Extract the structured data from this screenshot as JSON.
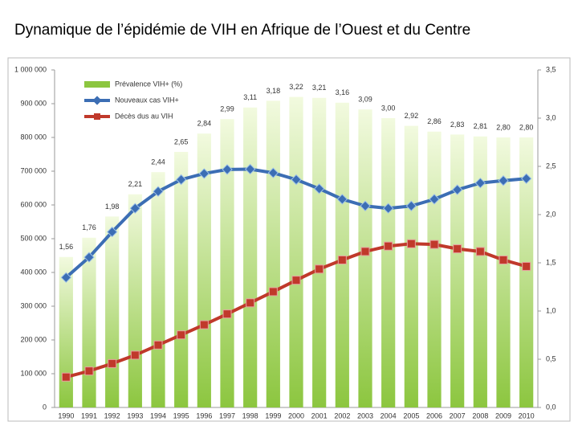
{
  "chart_data": {
    "type": "combo",
    "title": "Dynamique de l’épidémie de VIH en Afrique de l’Ouest et du Centre",
    "categories": [
      "1990",
      "1991",
      "1992",
      "1993",
      "1994",
      "1995",
      "1996",
      "1997",
      "1998",
      "1999",
      "2000",
      "2001",
      "2002",
      "2003",
      "2004",
      "2005",
      "2006",
      "2007",
      "2008",
      "2009",
      "2010"
    ],
    "series": [
      {
        "name": "Prévalence VIH+ (%)",
        "type": "bar",
        "axis": "y2",
        "color": "#8cc63f",
        "values": [
          1.56,
          1.76,
          1.98,
          2.21,
          2.44,
          2.65,
          2.84,
          2.99,
          3.11,
          3.18,
          3.22,
          3.21,
          3.16,
          3.09,
          3.0,
          2.92,
          2.86,
          2.83,
          2.81,
          2.8,
          2.8
        ],
        "value_labels": [
          "1,56",
          "1,76",
          "1,98",
          "2,21",
          "2,44",
          "2,65",
          "2,84",
          "2,99",
          "3,11",
          "3,18",
          "3,22",
          "3,21",
          "3,16",
          "3,09",
          "3,00",
          "2,92",
          "2,86",
          "2,83",
          "2,81",
          "2,80",
          "2,80"
        ]
      },
      {
        "name": "Nouveaux cas VIH+",
        "type": "line",
        "marker": "diamond",
        "color": "#3c6eb4",
        "values": [
          385000,
          445000,
          520000,
          590000,
          640000,
          675000,
          693000,
          705000,
          706000,
          695000,
          675000,
          648000,
          617000,
          597000,
          590000,
          597000,
          617000,
          645000,
          665000,
          672000,
          678000
        ]
      },
      {
        "name": "Décès dus au VIH",
        "type": "line",
        "marker": "square",
        "color": "#c0392b",
        "values": [
          90000,
          108000,
          130000,
          155000,
          185000,
          215000,
          245000,
          277000,
          310000,
          343000,
          377000,
          410000,
          437000,
          462000,
          478000,
          485000,
          483000,
          470000,
          462000,
          437000,
          418000
        ]
      }
    ],
    "ylim": [
      0,
      1000000
    ],
    "yticks": [
      0,
      {
        "value": 100000,
        "label": "100 000"
      },
      {
        "value": 200000,
        "label": "200 000"
      },
      {
        "value": 300000,
        "label": "300 000"
      },
      {
        "value": 400000,
        "label": "400 000"
      },
      {
        "value": 500000,
        "label": "500 000"
      },
      {
        "value": 600000,
        "label": "600 000"
      },
      {
        "value": 700000,
        "label": "700 000"
      },
      {
        "value": 800000,
        "label": "800 000"
      },
      {
        "value": 900000,
        "label": "900 000"
      },
      {
        "value": 1000000,
        "label": "1 000 000"
      }
    ],
    "y2lim": [
      0,
      3.5
    ],
    "y2ticks": [
      {
        "value": 0,
        "label": "0,0"
      },
      {
        "value": 0.5,
        "label": "0,5"
      },
      {
        "value": 1,
        "label": "1,0"
      },
      {
        "value": 1.5,
        "label": "1,5"
      },
      {
        "value": 2,
        "label": "2,0"
      },
      {
        "value": 2.5,
        "label": "2,5"
      },
      {
        "value": 3,
        "label": "3,0"
      },
      {
        "value": 3.5,
        "label": "3,5"
      }
    ],
    "grid": false,
    "legend": "top-left"
  }
}
